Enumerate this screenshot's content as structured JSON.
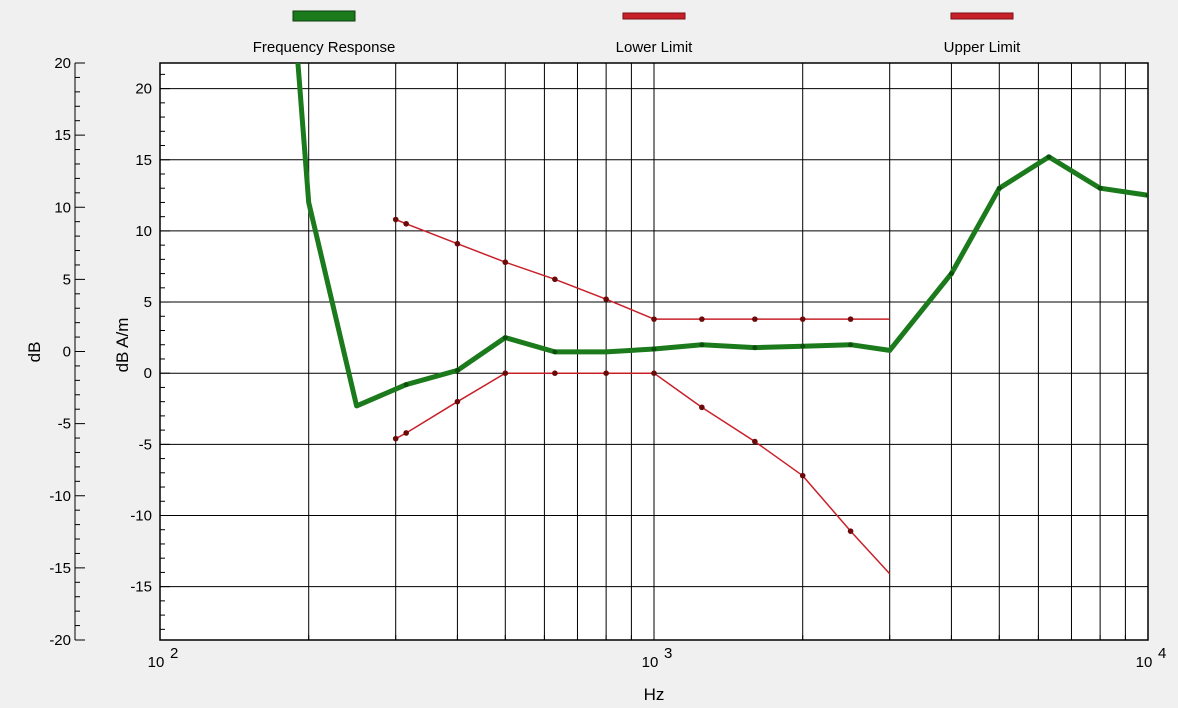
{
  "chart_data": {
    "type": "line",
    "x_scale": "log",
    "xlabel": "Hz",
    "xlim": [
      100,
      10000
    ],
    "x_ticks": [
      {
        "value": 100,
        "base": "10",
        "exp": "2"
      },
      {
        "value": 1000,
        "base": "10",
        "exp": "3"
      },
      {
        "value": 10000,
        "base": "10",
        "exp": "4"
      }
    ],
    "left_axis": {
      "label": "dB",
      "lim": [
        -20,
        20
      ],
      "ticks": [
        20,
        15,
        10,
        5,
        0,
        -5,
        -10,
        -15,
        -20
      ]
    },
    "right_axis": {
      "label": "dB A/m",
      "lim": [
        -18.75,
        21.8
      ],
      "ticks": [
        20,
        15,
        10,
        5,
        0,
        -5,
        -10,
        -15
      ]
    },
    "grid": true,
    "legend_position": "top",
    "series": [
      {
        "name": "Frequency Response",
        "color": "#1b7a1b",
        "axis": "right",
        "points": [
          [
            175,
            35
          ],
          [
            190,
            22
          ],
          [
            200,
            12
          ],
          [
            250,
            -2.3
          ],
          [
            315,
            -0.8
          ],
          [
            400,
            0.2
          ],
          [
            500,
            2.5
          ],
          [
            630,
            1.5
          ],
          [
            800,
            1.5
          ],
          [
            1000,
            1.7
          ],
          [
            1250,
            2.0
          ],
          [
            1600,
            1.8
          ],
          [
            2000,
            1.9
          ],
          [
            2500,
            2.0
          ],
          [
            3000,
            1.6
          ],
          [
            4000,
            7.0
          ],
          [
            5000,
            13.0
          ],
          [
            6300,
            15.2
          ],
          [
            8000,
            13.0
          ],
          [
            10000,
            12.5
          ]
        ],
        "markers": [
          [
            315,
            -0.8
          ],
          [
            400,
            0.2
          ],
          [
            500,
            2.5
          ],
          [
            630,
            1.5
          ],
          [
            1000,
            1.7
          ],
          [
            1250,
            2.0
          ],
          [
            1600,
            1.8
          ],
          [
            2000,
            1.9
          ],
          [
            2500,
            2.0
          ],
          [
            4000,
            7.0
          ],
          [
            5000,
            13.0
          ],
          [
            6300,
            15.2
          ],
          [
            8000,
            13.0
          ],
          [
            10000,
            12.5
          ]
        ]
      },
      {
        "name": "Lower Limit",
        "color": "#c8202a",
        "axis": "right",
        "points": [
          [
            300,
            -4.6
          ],
          [
            315,
            -4.2
          ],
          [
            400,
            -2.0
          ],
          [
            500,
            0.0
          ],
          [
            630,
            0.0
          ],
          [
            800,
            0.0
          ],
          [
            1000,
            0.0
          ],
          [
            1250,
            -2.4
          ],
          [
            1600,
            -4.8
          ],
          [
            2000,
            -7.2
          ],
          [
            2500,
            -11.1
          ],
          [
            3000,
            -14.1
          ]
        ],
        "markers": [
          [
            300,
            -4.6
          ],
          [
            315,
            -4.2
          ],
          [
            400,
            -2.0
          ],
          [
            500,
            0.0
          ],
          [
            630,
            0.0
          ],
          [
            800,
            0.0
          ],
          [
            1000,
            0.0
          ],
          [
            1250,
            -2.4
          ],
          [
            1600,
            -4.8
          ],
          [
            2000,
            -7.2
          ],
          [
            2500,
            -11.1
          ]
        ]
      },
      {
        "name": "Upper Limit",
        "color": "#c8202a",
        "axis": "right",
        "points": [
          [
            300,
            10.8
          ],
          [
            315,
            10.5
          ],
          [
            400,
            9.1
          ],
          [
            500,
            7.8
          ],
          [
            630,
            6.6
          ],
          [
            800,
            5.2
          ],
          [
            1000,
            3.8
          ],
          [
            1250,
            3.8
          ],
          [
            1600,
            3.8
          ],
          [
            2000,
            3.8
          ],
          [
            2500,
            3.8
          ],
          [
            3000,
            3.8
          ]
        ],
        "markers": [
          [
            300,
            10.8
          ],
          [
            315,
            10.5
          ],
          [
            400,
            9.1
          ],
          [
            500,
            7.8
          ],
          [
            630,
            6.6
          ],
          [
            800,
            5.2
          ],
          [
            1000,
            3.8
          ],
          [
            1250,
            3.8
          ],
          [
            1600,
            3.8
          ],
          [
            2000,
            3.8
          ],
          [
            2500,
            3.8
          ]
        ]
      }
    ]
  }
}
